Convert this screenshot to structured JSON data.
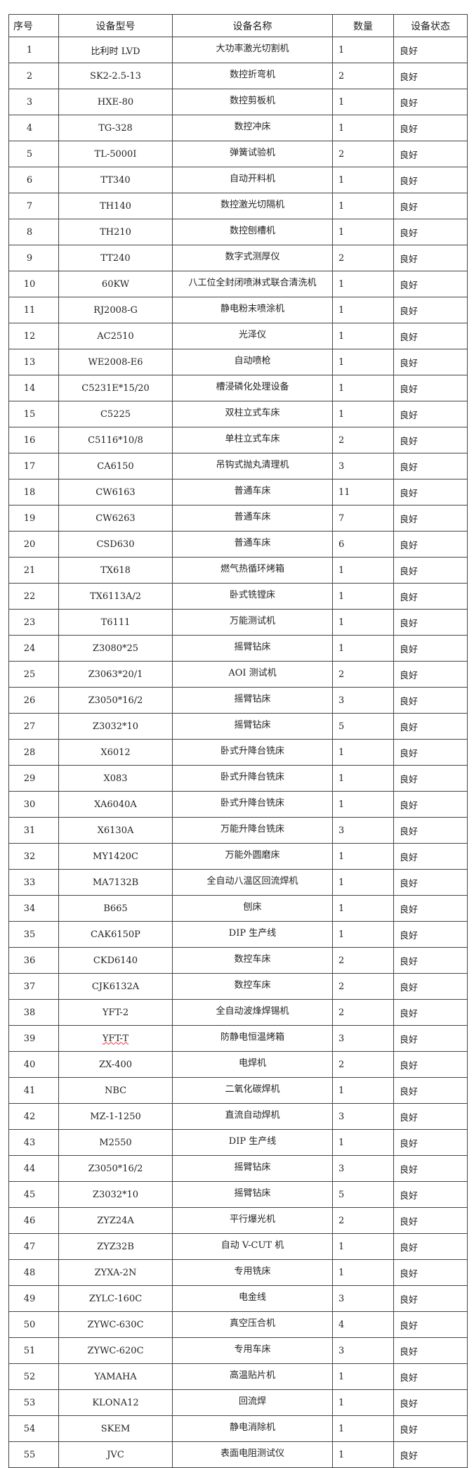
{
  "headers": {
    "seq": "序号",
    "model": "设备型号",
    "name": "设备名称",
    "qty": "数量",
    "status": "设备状态"
  },
  "rows": [
    [
      "1",
      "比利时 LVD",
      "大功率激光切割机",
      "1",
      "良好"
    ],
    [
      "2",
      "SK2-2.5-13",
      "数控折弯机",
      "2",
      "良好"
    ],
    [
      "3",
      "HXE-80",
      "数控剪板机",
      "1",
      "良好"
    ],
    [
      "4",
      "TG-328",
      "数控冲床",
      "1",
      "良好"
    ],
    [
      "5",
      "TL-5000I",
      "弹簧试验机",
      "2",
      "良好"
    ],
    [
      "6",
      "TT340",
      "自动开料机",
      "1",
      "良好"
    ],
    [
      "7",
      "TH140",
      "数控激光切隔机",
      "1",
      "良好"
    ],
    [
      "8",
      "TH210",
      "数控刨槽机",
      "1",
      "良好"
    ],
    [
      "9",
      "TT240",
      "数字式测厚仪",
      "2",
      "良好"
    ],
    [
      "10",
      "60KW",
      "八工位全封闭喷淋式联合清洗机",
      "1",
      "良好"
    ],
    [
      "11",
      "RJ2008-G",
      "静电粉末喷涂机",
      "1",
      "良好"
    ],
    [
      "12",
      "AC2510",
      "光泽仪",
      "1",
      "良好"
    ],
    [
      "13",
      "WE2008-E6",
      "自动喷枪",
      "1",
      "良好"
    ],
    [
      "14",
      "C5231E*15/20",
      "槽浸磷化处理设备",
      "1",
      "良好"
    ],
    [
      "15",
      "C5225",
      "双柱立式车床",
      "1",
      "良好"
    ],
    [
      "16",
      "C5116*10/8",
      "单柱立式车床",
      "2",
      "良好"
    ],
    [
      "17",
      "CA6150",
      "吊钩式抛丸清理机",
      "3",
      "良好"
    ],
    [
      "18",
      "CW6163",
      "普通车床",
      "11",
      "良好"
    ],
    [
      "19",
      "CW6263",
      "普通车床",
      "7",
      "良好"
    ],
    [
      "20",
      "CSD630",
      "普通车床",
      "6",
      "良好"
    ],
    [
      "21",
      "TX618",
      "燃气热循环烤箱",
      "1",
      "良好"
    ],
    [
      "22",
      "TX6113A/2",
      "卧式铣镗床",
      "1",
      "良好"
    ],
    [
      "23",
      "T6111",
      "万能测试机",
      "1",
      "良好"
    ],
    [
      "24",
      "Z3080*25",
      "摇臂钻床",
      "1",
      "良好"
    ],
    [
      "25",
      "Z3063*20/1",
      "AOI 测试机",
      "2",
      "良好"
    ],
    [
      "26",
      "Z3050*16/2",
      "摇臂钻床",
      "3",
      "良好"
    ],
    [
      "27",
      "Z3032*10",
      "摇臂钻床",
      "5",
      "良好"
    ],
    [
      "28",
      "X6012",
      "卧式升降台铣床",
      "1",
      "良好"
    ],
    [
      "29",
      "X083",
      "卧式升降台铣床",
      "1",
      "良好"
    ],
    [
      "30",
      "XA6040A",
      "卧式升降台铣床",
      "1",
      "良好"
    ],
    [
      "31",
      "X6130A",
      "万能升降台铣床",
      "3",
      "良好"
    ],
    [
      "32",
      "MY1420C",
      "万能外圆磨床",
      "1",
      "良好"
    ],
    [
      "33",
      "MA7132B",
      "全自动八温区回流焊机",
      "1",
      "良好"
    ],
    [
      "34",
      "B665",
      "刨床",
      "1",
      "良好"
    ],
    [
      "35",
      "CAK6150P",
      "DIP 生产线",
      "1",
      "良好"
    ],
    [
      "36",
      "CKD6140",
      "数控车床",
      "2",
      "良好"
    ],
    [
      "37",
      "CJK6132A",
      "数控车床",
      "2",
      "良好"
    ],
    [
      "38",
      "YFT-2",
      "全自动波烽焊锡机",
      "2",
      "良好"
    ],
    [
      "39",
      "YFT-T",
      "防静电恒温烤箱",
      "3",
      "良好"
    ],
    [
      "40",
      "ZX-400",
      "电焊机",
      "2",
      "良好"
    ],
    [
      "41",
      "NBC",
      "二氧化碳焊机",
      "1",
      "良好"
    ],
    [
      "42",
      "MZ-1-1250",
      "直流自动焊机",
      "3",
      "良好"
    ],
    [
      "43",
      "M2550",
      "DIP 生产线",
      "1",
      "良好"
    ],
    [
      "44",
      "Z3050*16/2",
      "摇臂钻床",
      "3",
      "良好"
    ],
    [
      "45",
      "Z3032*10",
      "摇臂钻床",
      "5",
      "良好"
    ],
    [
      "46",
      "ZYZ24A",
      "平行爆光机",
      "2",
      "良好"
    ],
    [
      "47",
      "ZYZ32B",
      "自动 V-CUT 机",
      "1",
      "良好"
    ],
    [
      "48",
      "ZYXA-2N",
      "专用铣床",
      "1",
      "良好"
    ],
    [
      "49",
      "ZYLC-160C",
      "电金线",
      "3",
      "良好"
    ],
    [
      "50",
      "ZYWC-630C",
      "真空压合机",
      "4",
      "良好"
    ],
    [
      "51",
      "ZYWC-620C",
      "专用车床",
      "3",
      "良好"
    ],
    [
      "52",
      "YAMAHA",
      "高温贴片机",
      "1",
      "良好"
    ],
    [
      "53",
      "KLONA12",
      "回流焊",
      "1",
      "良好"
    ],
    [
      "54",
      "SKEM",
      "静电消除机",
      "1",
      "良好"
    ],
    [
      "55",
      "JVC",
      "表面电阻测试仪",
      "1",
      "良好"
    ]
  ]
}
